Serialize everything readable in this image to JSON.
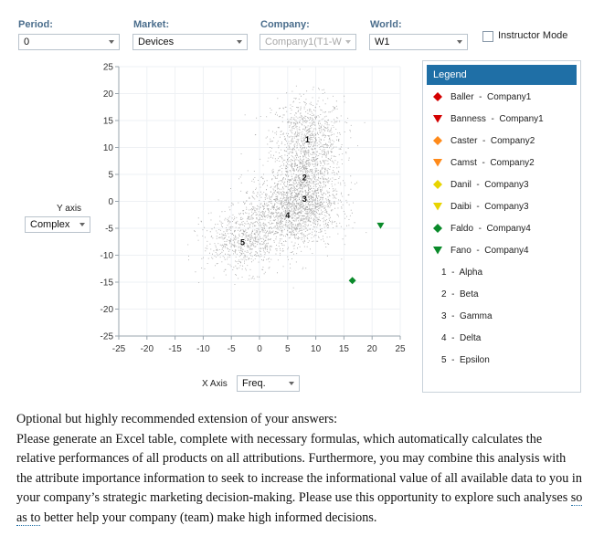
{
  "filters": {
    "period": {
      "label": "Period:",
      "value": "0"
    },
    "market": {
      "label": "Market:",
      "value": "Devices"
    },
    "company": {
      "label": "Company:",
      "value": "Company1(T1-W"
    },
    "world": {
      "label": "World:",
      "value": "W1"
    }
  },
  "instructor_mode": {
    "label": "Instructor Mode",
    "checked": false
  },
  "axes": {
    "y_label": "Y axis",
    "y_select": "Complex",
    "x_label": "X Axis",
    "x_select": "Freq."
  },
  "legend": {
    "title": "Legend",
    "items": [
      {
        "label": "Baller  -  Company1",
        "shape": "diamond",
        "color": "#d40000"
      },
      {
        "label": "Banness  -  Company1",
        "shape": "triangle",
        "color": "#d40000"
      },
      {
        "label": "Caster  -  Company2",
        "shape": "diamond",
        "color": "#ff8a1a"
      },
      {
        "label": "Camst  -  Company2",
        "shape": "triangle",
        "color": "#ff8a1a"
      },
      {
        "label": "Danil  -  Company3",
        "shape": "diamond",
        "color": "#e8d400"
      },
      {
        "label": "Daibi  -  Company3",
        "shape": "triangle",
        "color": "#e8d400"
      },
      {
        "label": "Faldo  -  Company4",
        "shape": "diamond",
        "color": "#0a8a2a"
      },
      {
        "label": "Fano  -  Company4",
        "shape": "triangle",
        "color": "#0a8a2a"
      },
      {
        "label": "1  -  Alpha",
        "shape": "none",
        "color": ""
      },
      {
        "label": "2  -  Beta",
        "shape": "none",
        "color": ""
      },
      {
        "label": "3  -  Gamma",
        "shape": "none",
        "color": ""
      },
      {
        "label": "4  -  Delta",
        "shape": "none",
        "color": ""
      },
      {
        "label": "5  -  Epsilon",
        "shape": "none",
        "color": ""
      }
    ]
  },
  "chart_data": {
    "type": "scatter",
    "xlim": [
      -25,
      25
    ],
    "ylim": [
      -25,
      25
    ],
    "x_ticks": [
      -25,
      -20,
      -15,
      -10,
      -5,
      0,
      5,
      10,
      15,
      20,
      25
    ],
    "y_ticks": [
      25,
      20,
      15,
      10,
      5,
      0,
      -5,
      -10,
      -15,
      -20,
      -25
    ],
    "segments": [
      {
        "id": "1",
        "x": 8.5,
        "y": 11.5,
        "sx": 3.2,
        "sy": 4.0
      },
      {
        "id": "2",
        "x": 8.0,
        "y": 4.5,
        "sx": 3.0,
        "sy": 3.0
      },
      {
        "id": "3",
        "x": 8.0,
        "y": 0.5,
        "sx": 3.0,
        "sy": 2.5
      },
      {
        "id": "4",
        "x": 5.0,
        "y": -2.5,
        "sx": 4.2,
        "sy": 3.2
      },
      {
        "id": "5",
        "x": -3.0,
        "y": -7.5,
        "sx": 3.5,
        "sy": 2.8
      }
    ],
    "products": [
      {
        "name": "Fano",
        "shape": "triangle",
        "color": "#0a8a2a",
        "x": 21.5,
        "y": -4.5
      },
      {
        "name": "Faldo",
        "shape": "diamond",
        "color": "#0a8a2a",
        "x": 16.5,
        "y": -14.7
      }
    ]
  },
  "body_text": {
    "p1": "Optional but highly recommended extension of your answers:",
    "p2a": "Please generate an Excel table, complete with necessary formulas, which automatically calculates the relative performances of all products on all attributions.  Furthermore, you may combine this analysis with the attribute importance information to seek to increase the informational value of all available data to you in your company’s strategic marketing decision-making.  Please use this opportunity to explore such analyses ",
    "p2b": "so as to",
    "p2c": " better help your company (team) make high informed decisions."
  }
}
